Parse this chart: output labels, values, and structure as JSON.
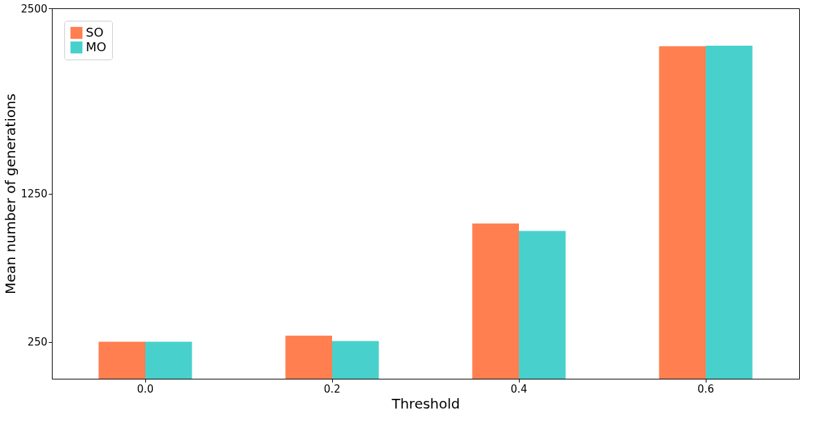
{
  "chart_data": {
    "type": "bar",
    "xlabel": "Threshold",
    "ylabel": "Mean number of generations",
    "categories": [
      "0.0",
      "0.2",
      "0.4",
      "0.6"
    ],
    "series": [
      {
        "name": "SO",
        "color": "#ff7f50",
        "values": [
          250,
          291,
          1048,
          2244
        ]
      },
      {
        "name": "MO",
        "color": "#48d1cc",
        "values": [
          250,
          255,
          998,
          2248
        ]
      }
    ],
    "ylim": [
      0,
      2500
    ],
    "yticks": [
      250,
      1250,
      2500
    ],
    "grid": false,
    "legend": "top left"
  }
}
